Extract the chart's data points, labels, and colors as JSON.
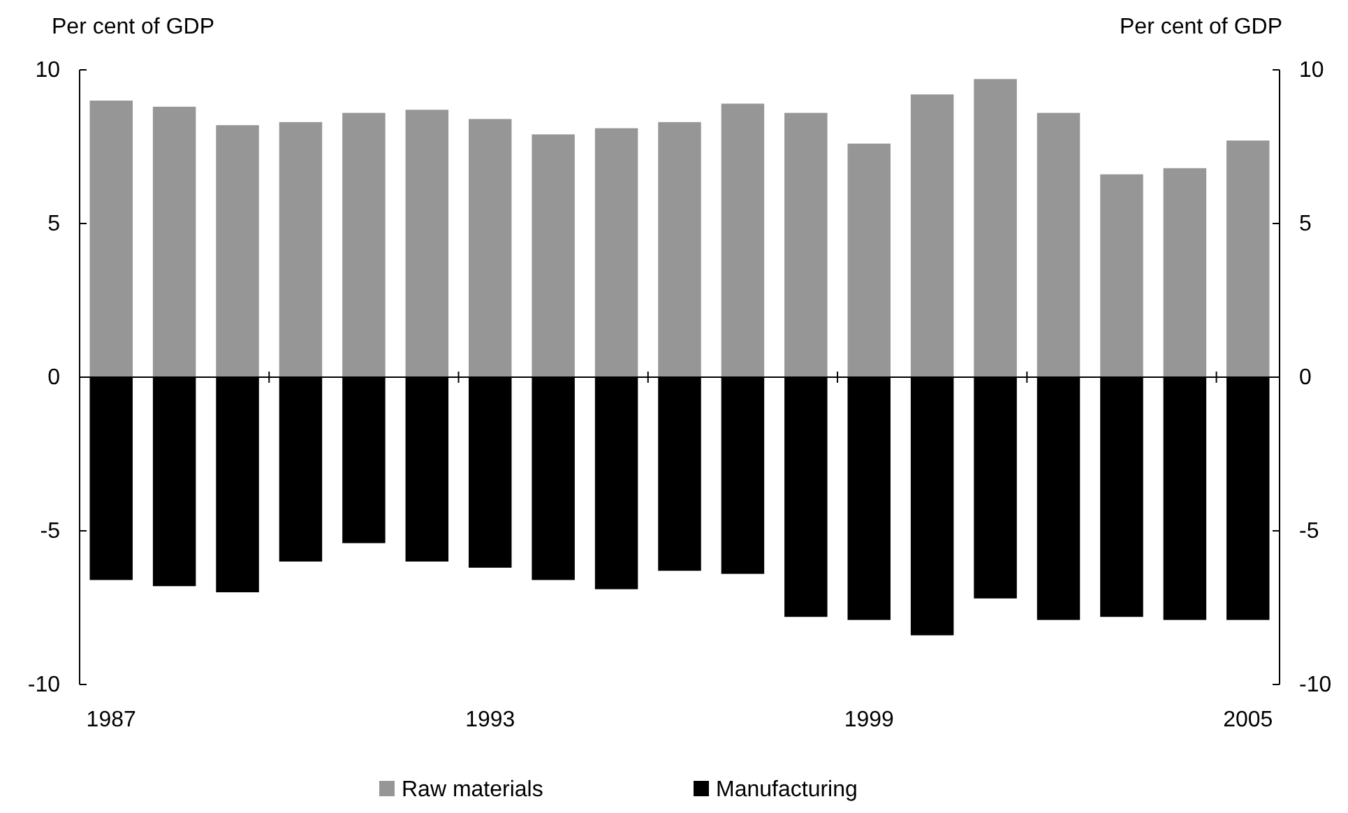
{
  "chart_data": {
    "type": "bar",
    "stacked": true,
    "ylabel": "Per cent of GDP",
    "y2label": "Per cent of GDP",
    "categories": [
      "1987",
      null,
      null,
      null,
      null,
      null,
      "1993",
      null,
      null,
      null,
      null,
      null,
      "1999",
      null,
      null,
      null,
      null,
      null,
      "2005"
    ],
    "series": [
      {
        "name": "Raw materials",
        "color": "#969696",
        "values": [
          9.0,
          8.8,
          8.2,
          8.3,
          8.6,
          8.7,
          8.4,
          7.9,
          8.1,
          8.3,
          8.9,
          8.6,
          7.6,
          9.2,
          9.7,
          8.6,
          6.6,
          6.8,
          7.7
        ]
      },
      {
        "name": "Manufacturing",
        "color": "#000000",
        "values": [
          -6.6,
          -6.8,
          -7.0,
          -6.0,
          -5.4,
          -6.0,
          -6.2,
          -6.6,
          -6.9,
          -6.3,
          -6.4,
          -7.8,
          -7.9,
          -8.4,
          -7.2,
          -7.9,
          -7.8,
          -7.9,
          -7.9
        ]
      }
    ],
    "ylim": [
      -10,
      10
    ],
    "yticks": [
      -10,
      -5,
      0,
      5,
      10
    ],
    "y2lim": [
      -10,
      10
    ],
    "y2ticks": [
      -10,
      -5,
      0,
      5,
      10
    ],
    "legend": "bottom"
  }
}
